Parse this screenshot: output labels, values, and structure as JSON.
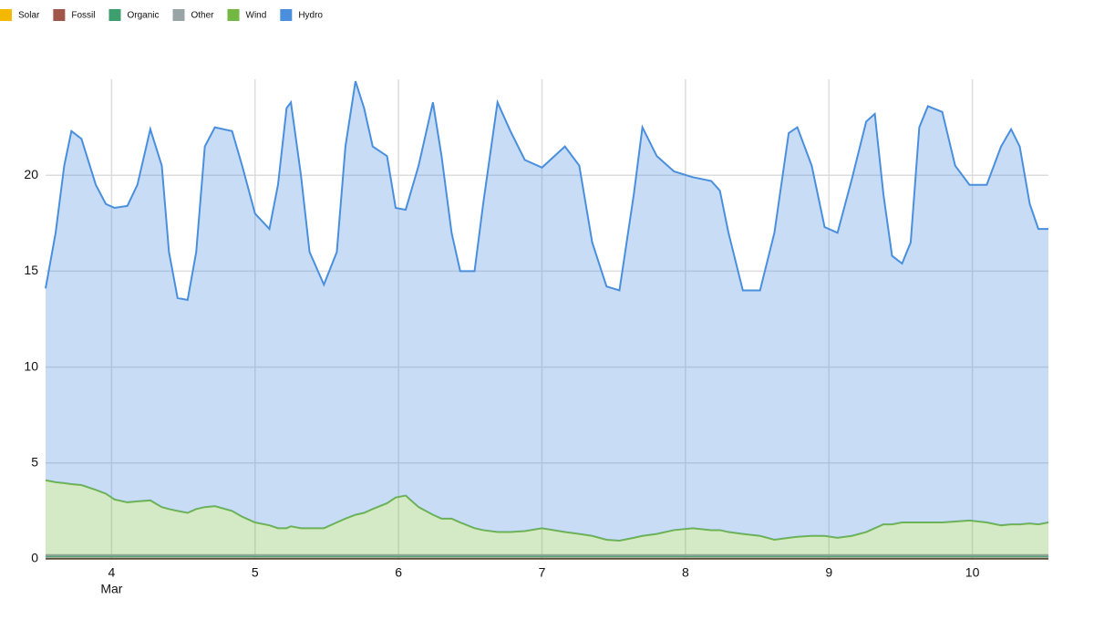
{
  "chart_data": {
    "type": "stacked-area",
    "x": [
      3.54,
      3.61,
      3.67,
      3.72,
      3.79,
      3.89,
      3.96,
      4.02,
      4.11,
      4.18,
      4.27,
      4.35,
      4.4,
      4.46,
      4.53,
      4.59,
      4.65,
      4.72,
      4.84,
      4.91,
      5.0,
      5.1,
      5.16,
      5.22,
      5.25,
      5.32,
      5.38,
      5.48,
      5.57,
      5.63,
      5.7,
      5.76,
      5.82,
      5.92,
      5.98,
      6.05,
      6.14,
      6.24,
      6.3,
      6.37,
      6.43,
      6.53,
      6.59,
      6.69,
      6.78,
      6.88,
      7.0,
      7.16,
      7.26,
      7.35,
      7.45,
      7.54,
      7.64,
      7.7,
      7.8,
      7.92,
      8.05,
      8.18,
      8.24,
      8.3,
      8.4,
      8.52,
      8.62,
      8.72,
      8.78,
      8.88,
      8.97,
      9.06,
      9.16,
      9.26,
      9.32,
      9.38,
      9.44,
      9.51,
      9.57,
      9.63,
      9.69,
      9.79,
      9.88,
      9.98,
      10.1,
      10.2,
      10.27,
      10.33,
      10.4,
      10.46,
      10.53
    ],
    "x_month_label": "Mar",
    "xlim": [
      3.54,
      10.53
    ],
    "xticks": [
      4,
      5,
      6,
      7,
      8,
      9,
      10
    ],
    "ylim": [
      0,
      25
    ],
    "yticks": [
      0,
      5,
      10,
      15,
      20
    ],
    "grid": true,
    "legend": "top-left",
    "series": [
      {
        "name": "Solar",
        "color": "#f5b800",
        "values": [
          0.02,
          0.02,
          0.02,
          0.02,
          0.02,
          0.02,
          0.02,
          0.02,
          0.02,
          0.02,
          0.02,
          0.02,
          0.02,
          0.02,
          0.02,
          0.02,
          0.02,
          0.02,
          0.02,
          0.02,
          0.02,
          0.02,
          0.02,
          0.02,
          0.02,
          0.02,
          0.02,
          0.02,
          0.02,
          0.02,
          0.02,
          0.02,
          0.02,
          0.02,
          0.02,
          0.02,
          0.02,
          0.02,
          0.02,
          0.02,
          0.02,
          0.02,
          0.02,
          0.02,
          0.02,
          0.02,
          0.02,
          0.02,
          0.02,
          0.02,
          0.02,
          0.02,
          0.02,
          0.02,
          0.02,
          0.02,
          0.02,
          0.02,
          0.02,
          0.02,
          0.02,
          0.02,
          0.02,
          0.02,
          0.02,
          0.02,
          0.02,
          0.02,
          0.02,
          0.02,
          0.02,
          0.02,
          0.02,
          0.02,
          0.02,
          0.02,
          0.02,
          0.02,
          0.02,
          0.02,
          0.02,
          0.02,
          0.02,
          0.02,
          0.02,
          0.02,
          0.02
        ]
      },
      {
        "name": "Fossil",
        "color": "#a0574a",
        "values": [
          0,
          0,
          0,
          0,
          0,
          0,
          0,
          0,
          0,
          0,
          0,
          0,
          0,
          0,
          0,
          0,
          0,
          0,
          0,
          0,
          0,
          0,
          0,
          0,
          0,
          0,
          0,
          0,
          0,
          0,
          0,
          0,
          0,
          0,
          0,
          0,
          0,
          0,
          0,
          0,
          0,
          0,
          0,
          0,
          0,
          0,
          0,
          0,
          0,
          0,
          0,
          0,
          0,
          0,
          0,
          0,
          0,
          0,
          0,
          0,
          0,
          0,
          0,
          0,
          0,
          0,
          0,
          0,
          0,
          0,
          0,
          0,
          0,
          0,
          0,
          0,
          0,
          0,
          0,
          0,
          0,
          0,
          0,
          0,
          0,
          0,
          0
        ]
      },
      {
        "name": "Organic",
        "color": "#3d9e6e",
        "values": [
          0.13,
          0.13,
          0.13,
          0.13,
          0.13,
          0.13,
          0.13,
          0.13,
          0.13,
          0.13,
          0.13,
          0.13,
          0.13,
          0.13,
          0.13,
          0.13,
          0.13,
          0.13,
          0.13,
          0.13,
          0.13,
          0.13,
          0.13,
          0.13,
          0.13,
          0.13,
          0.13,
          0.13,
          0.13,
          0.13,
          0.13,
          0.13,
          0.13,
          0.13,
          0.13,
          0.13,
          0.13,
          0.13,
          0.13,
          0.13,
          0.13,
          0.13,
          0.13,
          0.13,
          0.13,
          0.13,
          0.13,
          0.13,
          0.13,
          0.13,
          0.13,
          0.13,
          0.13,
          0.13,
          0.13,
          0.13,
          0.13,
          0.13,
          0.13,
          0.13,
          0.13,
          0.13,
          0.13,
          0.13,
          0.13,
          0.13,
          0.13,
          0.13,
          0.13,
          0.13,
          0.13,
          0.13,
          0.13,
          0.13,
          0.13,
          0.13,
          0.13,
          0.13,
          0.13,
          0.13,
          0.13,
          0.13,
          0.13,
          0.13,
          0.13,
          0.13,
          0.13
        ]
      },
      {
        "name": "Other",
        "color": "#98a4a6",
        "values": [
          0.05,
          0.05,
          0.05,
          0.05,
          0.05,
          0.05,
          0.05,
          0.05,
          0.05,
          0.05,
          0.05,
          0.05,
          0.05,
          0.05,
          0.05,
          0.05,
          0.05,
          0.05,
          0.05,
          0.05,
          0.05,
          0.05,
          0.05,
          0.05,
          0.05,
          0.05,
          0.05,
          0.05,
          0.05,
          0.05,
          0.05,
          0.05,
          0.05,
          0.05,
          0.05,
          0.05,
          0.05,
          0.05,
          0.05,
          0.05,
          0.05,
          0.05,
          0.05,
          0.05,
          0.05,
          0.05,
          0.05,
          0.05,
          0.05,
          0.05,
          0.05,
          0.05,
          0.05,
          0.05,
          0.05,
          0.05,
          0.05,
          0.05,
          0.05,
          0.05,
          0.05,
          0.05,
          0.05,
          0.05,
          0.05,
          0.05,
          0.05,
          0.05,
          0.05,
          0.05,
          0.05,
          0.05,
          0.05,
          0.05,
          0.05,
          0.05,
          0.05,
          0.05,
          0.05,
          0.05,
          0.05,
          0.05,
          0.05,
          0.05,
          0.05,
          0.05,
          0.05
        ]
      },
      {
        "name": "Wind",
        "color": "#72b843",
        "values": [
          3.9,
          3.8,
          3.75,
          3.7,
          3.65,
          3.4,
          3.2,
          2.9,
          2.75,
          2.8,
          2.85,
          2.5,
          2.4,
          2.3,
          2.2,
          2.4,
          2.5,
          2.55,
          2.3,
          2.0,
          1.7,
          1.55,
          1.4,
          1.4,
          1.5,
          1.4,
          1.4,
          1.4,
          1.7,
          1.9,
          2.1,
          2.2,
          2.4,
          2.7,
          3.0,
          3.1,
          2.5,
          2.1,
          1.9,
          1.9,
          1.7,
          1.4,
          1.3,
          1.2,
          1.2,
          1.25,
          1.4,
          1.2,
          1.1,
          1.0,
          0.8,
          0.75,
          0.9,
          1.0,
          1.1,
          1.3,
          1.4,
          1.3,
          1.3,
          1.2,
          1.1,
          1.0,
          0.8,
          0.9,
          0.95,
          1.0,
          1.0,
          0.9,
          1.0,
          1.2,
          1.4,
          1.6,
          1.6,
          1.7,
          1.7,
          1.7,
          1.7,
          1.7,
          1.75,
          1.8,
          1.7,
          1.55,
          1.6,
          1.6,
          1.65,
          1.6,
          1.7
        ]
      },
      {
        "name": "Hydro",
        "color": "#4a8fdd",
        "values": [
          10.0,
          13.0,
          16.55,
          18.4,
          18.05,
          15.9,
          15.1,
          15.2,
          15.45,
          16.5,
          19.35,
          17.8,
          13.4,
          11.1,
          11.1,
          13.4,
          18.8,
          19.75,
          19.8,
          18.3,
          16.1,
          15.45,
          17.9,
          21.9,
          22.1,
          18.4,
          14.4,
          12.7,
          14.1,
          19.4,
          22.6,
          21.1,
          18.9,
          18.1,
          15.1,
          14.9,
          17.8,
          21.5,
          18.9,
          14.9,
          13.1,
          13.4,
          17.0,
          22.4,
          20.9,
          19.35,
          18.8,
          20.1,
          19.2,
          15.3,
          13.2,
          13.05,
          17.9,
          21.3,
          19.7,
          18.7,
          18.3,
          18.2,
          17.7,
          15.6,
          12.7,
          12.8,
          16.0,
          21.1,
          21.35,
          19.3,
          16.1,
          15.9,
          18.6,
          21.4,
          21.6,
          17.2,
          14.0,
          13.5,
          14.6,
          20.6,
          21.7,
          21.4,
          18.55,
          17.5,
          17.6,
          19.75,
          20.6,
          19.7,
          16.65,
          15.4,
          15.3
        ]
      }
    ]
  }
}
